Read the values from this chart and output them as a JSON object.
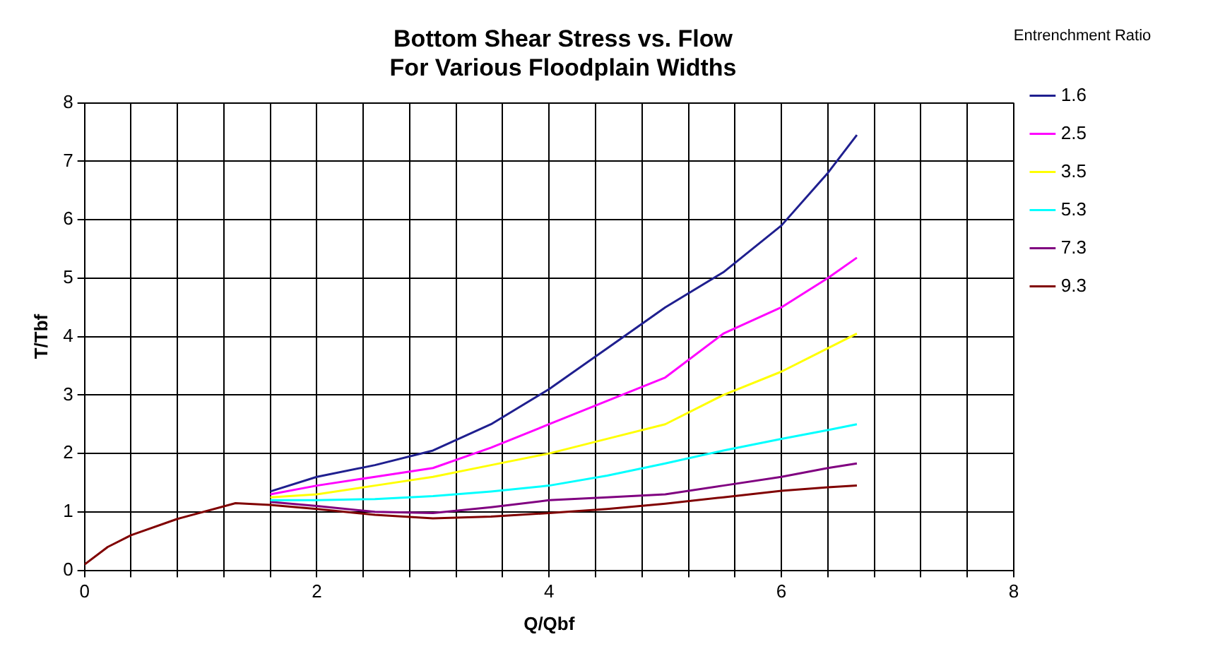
{
  "chart_data": {
    "type": "line",
    "title": "Bottom Shear Stress vs. Flow\nFor Various Floodplain Widths",
    "xlabel": "Q/Qbf",
    "ylabel": "T/Tbf",
    "legend_title": "Entrenchment Ratio",
    "x": [
      0,
      0.2,
      0.4,
      0.8,
      1.3,
      1.6,
      2,
      2.5,
      3,
      3.5,
      4,
      4.5,
      5,
      5.5,
      6,
      6.4,
      6.65
    ],
    "series": [
      {
        "name": "1.6",
        "color": "#1f1f8f",
        "x": [
          1.6,
          2,
          2.5,
          3,
          3.5,
          4,
          4.5,
          5,
          5.5,
          6,
          6.4,
          6.65
        ],
        "values": [
          1.35,
          1.6,
          1.8,
          2.05,
          2.5,
          3.1,
          3.8,
          4.5,
          5.1,
          5.9,
          6.8,
          7.45
        ]
      },
      {
        "name": "2.5",
        "color": "#ff00ff",
        "x": [
          1.6,
          2,
          2.5,
          3,
          3.5,
          4,
          4.5,
          5,
          5.5,
          6,
          6.4,
          6.65
        ],
        "values": [
          1.3,
          1.45,
          1.6,
          1.75,
          2.1,
          2.5,
          2.9,
          3.3,
          4.05,
          4.5,
          5.0,
          5.35
        ]
      },
      {
        "name": "3.5",
        "color": "#ffff00",
        "x": [
          1.6,
          2,
          2.5,
          3,
          3.5,
          4,
          4.5,
          5,
          5.5,
          6,
          6.4,
          6.65
        ],
        "values": [
          1.25,
          1.3,
          1.45,
          1.6,
          1.8,
          2.0,
          2.25,
          2.5,
          3.0,
          3.4,
          3.8,
          4.05
        ]
      },
      {
        "name": "5.3",
        "color": "#00ffff",
        "x": [
          1.6,
          2,
          2.5,
          3,
          3.5,
          4,
          4.5,
          5,
          5.5,
          6,
          6.4,
          6.65
        ],
        "values": [
          1.2,
          1.2,
          1.22,
          1.27,
          1.35,
          1.45,
          1.62,
          1.83,
          2.05,
          2.25,
          2.4,
          2.5
        ]
      },
      {
        "name": "7.3",
        "color": "#800080",
        "x": [
          1.6,
          2,
          2.5,
          3,
          3.5,
          4,
          4.5,
          5,
          5.5,
          6,
          6.4,
          6.65
        ],
        "values": [
          1.17,
          1.1,
          1.0,
          0.98,
          1.08,
          1.2,
          1.25,
          1.3,
          1.45,
          1.6,
          1.75,
          1.83
        ]
      },
      {
        "name": "9.3",
        "color": "#800000",
        "values": [
          0.1,
          0.4,
          0.6,
          0.88,
          1.15,
          1.12,
          1.05,
          0.95,
          0.89,
          0.92,
          0.98,
          1.05,
          1.14,
          1.25,
          1.36,
          1.42,
          1.45
        ]
      }
    ],
    "xlim": [
      0,
      8
    ],
    "xticks": [
      0,
      {
        "value": 0.4,
        "label": null
      },
      {
        "value": 0.8,
        "label": null
      },
      {
        "value": 1.2,
        "label": null
      },
      {
        "value": 1.6,
        "label": null
      },
      2,
      {
        "value": 2.4,
        "label": null
      },
      {
        "value": 2.8,
        "label": null
      },
      {
        "value": 3.2,
        "label": null
      },
      {
        "value": 3.6,
        "label": null
      },
      4,
      {
        "value": 4.4,
        "label": null
      },
      {
        "value": 4.8,
        "label": null
      },
      {
        "value": 5.2,
        "label": null
      },
      {
        "value": 5.6,
        "label": null
      },
      6,
      {
        "value": 6.4,
        "label": null
      },
      {
        "value": 6.8,
        "label": null
      },
      {
        "value": 7.2,
        "label": null
      },
      {
        "value": 7.6,
        "label": null
      },
      8
    ],
    "ylim": [
      0,
      8
    ],
    "yticks": [
      0,
      1,
      2,
      3,
      4,
      5,
      6,
      7,
      8
    ],
    "grid": true,
    "legend": "right",
    "marker": "none",
    "line_style": "solid"
  }
}
